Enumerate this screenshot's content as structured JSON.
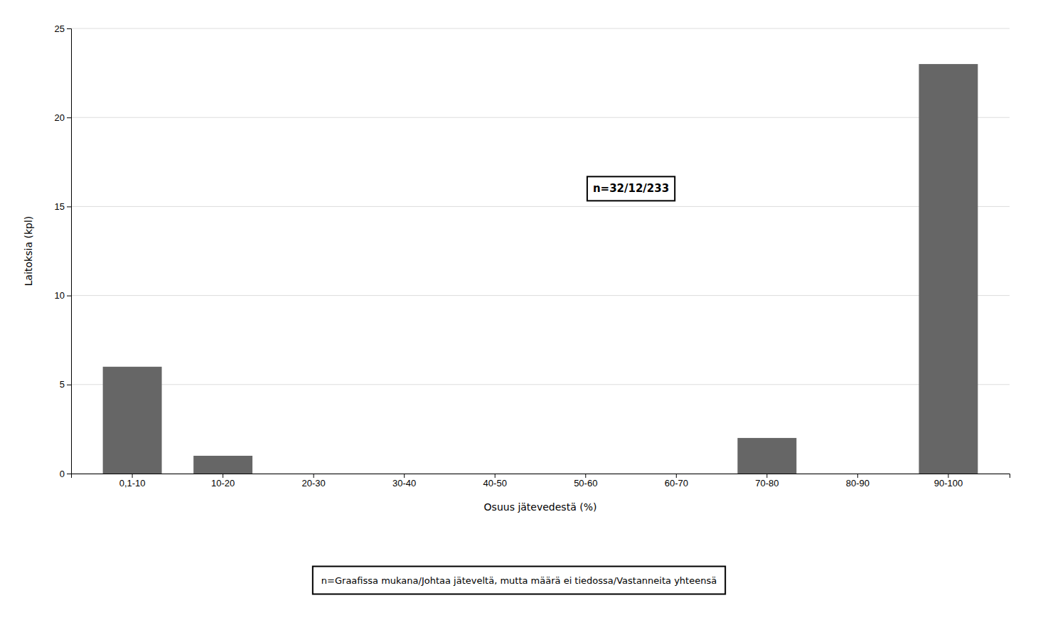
{
  "chart_data": {
    "type": "bar",
    "categories": [
      "0,1-10",
      "10-20",
      "20-30",
      "30-40",
      "40-50",
      "50-60",
      "60-70",
      "70-80",
      "80-90",
      "90-100"
    ],
    "values": [
      6,
      1,
      0,
      0,
      0,
      0,
      0,
      2,
      0,
      23
    ],
    "color": "#666666",
    "xlabel": "Osuus jätevedestä (%)",
    "ylabel": "Laitoksia (kpl)",
    "ylim": [
      0,
      25
    ],
    "yticks": [
      0,
      5,
      10,
      15,
      20,
      25
    ],
    "grid": true,
    "annotations": [
      "n=32/12/233"
    ],
    "footnote": "n=Graafissa mukana/Johtaa jäteveltä, mutta määrä ei tiedossa/Vastanneita yhteensä"
  }
}
